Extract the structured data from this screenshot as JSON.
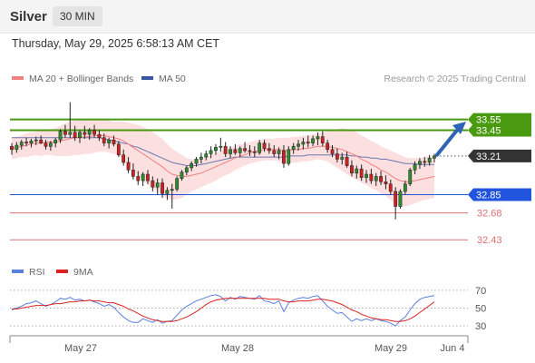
{
  "header": {
    "symbol": "Silver",
    "timeframe": "30 MIN"
  },
  "timestamp": "Thursday, May 29, 2025 6:58:13 AM CET",
  "colors": {
    "candle_up": "#2e8b2e",
    "candle_down": "#cc2222",
    "ma20": "#f08080",
    "bollinger_fill": "#fbd4d4",
    "ma50": "#3a55a0",
    "resistance": "#4a9a10",
    "support": "#2255dd",
    "support_weak": "#e07070",
    "rsi": "#5b7fdc",
    "rsi_ma": "#dd2222",
    "arrow": "#2f64b4",
    "price_tag": "#333333"
  },
  "chart_data": [
    {
      "type": "candlestick",
      "legend": [
        {
          "name": "MA 20 + Bollinger Bands",
          "color": "#f08080"
        },
        {
          "name": "MA 50",
          "color": "#3a55a0"
        }
      ],
      "credit": "Research © 2025 Trading Central",
      "x_labels": [
        "May 27",
        "May 28",
        "May 29",
        "Jun 4"
      ],
      "ylim": [
        32.28,
        33.8
      ],
      "levels": [
        {
          "label": "33.55",
          "value": 33.55,
          "kind": "resistance"
        },
        {
          "label": "33.45",
          "value": 33.45,
          "kind": "resistance"
        },
        {
          "label": "32.85",
          "value": 32.85,
          "kind": "support"
        },
        {
          "label": "32.68",
          "value": 32.68,
          "kind": "support_weak"
        },
        {
          "label": "32.43",
          "value": 32.43,
          "kind": "support_weak"
        }
      ],
      "last_price": {
        "label": "33.21",
        "value": 33.21
      },
      "target": {
        "from": 33.22,
        "to": 33.53
      },
      "candles": [
        [
          33.3,
          33.33,
          33.22,
          33.27
        ],
        [
          33.27,
          33.34,
          33.24,
          33.31
        ],
        [
          33.31,
          33.36,
          33.27,
          33.34
        ],
        [
          33.34,
          33.38,
          33.3,
          33.33
        ],
        [
          33.33,
          33.37,
          33.29,
          33.35
        ],
        [
          33.35,
          33.39,
          33.31,
          33.36
        ],
        [
          33.36,
          33.4,
          33.32,
          33.33
        ],
        [
          33.33,
          33.36,
          33.27,
          33.3
        ],
        [
          33.3,
          33.35,
          33.26,
          33.33
        ],
        [
          33.33,
          33.38,
          33.29,
          33.36
        ],
        [
          33.36,
          33.46,
          33.33,
          33.44
        ],
        [
          33.44,
          33.5,
          33.38,
          33.41
        ],
        [
          33.41,
          33.71,
          33.38,
          33.43
        ],
        [
          33.43,
          33.49,
          33.35,
          33.38
        ],
        [
          33.38,
          33.45,
          33.33,
          33.43
        ],
        [
          33.43,
          33.49,
          33.37,
          33.41
        ],
        [
          33.41,
          33.47,
          33.36,
          33.45
        ],
        [
          33.45,
          33.5,
          33.38,
          33.41
        ],
        [
          33.41,
          33.45,
          33.35,
          33.38
        ],
        [
          33.38,
          33.42,
          33.3,
          33.33
        ],
        [
          33.33,
          33.38,
          33.28,
          33.36
        ],
        [
          33.36,
          33.4,
          33.3,
          33.32
        ],
        [
          33.32,
          33.35,
          33.2,
          33.22
        ],
        [
          33.22,
          33.27,
          33.12,
          33.15
        ],
        [
          33.15,
          33.2,
          33.05,
          33.08
        ],
        [
          33.08,
          33.14,
          32.99,
          33.02
        ],
        [
          33.02,
          33.07,
          32.94,
          32.98
        ],
        [
          32.98,
          33.06,
          32.93,
          33.04
        ],
        [
          33.04,
          33.08,
          32.95,
          32.98
        ],
        [
          32.98,
          33.02,
          32.88,
          32.92
        ],
        [
          32.92,
          33.0,
          32.85,
          32.96
        ],
        [
          32.96,
          33.0,
          32.82,
          32.86
        ],
        [
          32.86,
          32.92,
          32.8,
          32.89
        ],
        [
          32.89,
          32.95,
          32.72,
          32.9
        ],
        [
          32.9,
          33.02,
          32.88,
          33.0
        ],
        [
          33.0,
          33.08,
          32.98,
          33.06
        ],
        [
          33.06,
          33.12,
          33.03,
          33.1
        ],
        [
          33.1,
          33.16,
          33.07,
          33.14
        ],
        [
          33.14,
          33.2,
          33.11,
          33.18
        ],
        [
          33.18,
          33.24,
          33.14,
          33.2
        ],
        [
          33.2,
          33.26,
          33.17,
          33.23
        ],
        [
          33.23,
          33.3,
          33.19,
          33.26
        ],
        [
          33.26,
          33.32,
          33.22,
          33.29
        ],
        [
          33.29,
          33.38,
          33.25,
          33.3
        ],
        [
          33.3,
          33.34,
          33.2,
          33.23
        ],
        [
          33.23,
          33.3,
          33.19,
          33.27
        ],
        [
          33.27,
          33.32,
          33.22,
          33.24
        ],
        [
          33.24,
          33.3,
          33.2,
          33.28
        ],
        [
          33.28,
          33.34,
          33.24,
          33.26
        ],
        [
          33.26,
          33.31,
          33.21,
          33.25
        ],
        [
          33.25,
          33.3,
          33.2,
          33.24
        ],
        [
          33.24,
          33.36,
          33.22,
          33.33
        ],
        [
          33.33,
          33.36,
          33.25,
          33.28
        ],
        [
          33.28,
          33.33,
          33.23,
          33.26
        ],
        [
          33.26,
          33.31,
          33.2,
          33.23
        ],
        [
          33.23,
          33.29,
          33.18,
          33.26
        ],
        [
          33.26,
          33.31,
          33.1,
          33.14
        ],
        [
          33.14,
          33.3,
          33.12,
          33.27
        ],
        [
          33.27,
          33.33,
          33.23,
          33.3
        ],
        [
          33.3,
          33.36,
          33.26,
          33.32
        ],
        [
          33.32,
          33.38,
          33.27,
          33.34
        ],
        [
          33.34,
          33.4,
          33.29,
          33.33
        ],
        [
          33.33,
          33.4,
          33.3,
          33.37
        ],
        [
          33.37,
          33.43,
          33.31,
          33.39
        ],
        [
          33.39,
          33.44,
          33.3,
          33.33
        ],
        [
          33.33,
          33.36,
          33.24,
          33.27
        ],
        [
          33.27,
          33.31,
          33.2,
          33.23
        ],
        [
          33.23,
          33.28,
          33.15,
          33.18
        ],
        [
          33.18,
          33.24,
          33.13,
          33.2
        ],
        [
          33.2,
          33.25,
          33.1,
          33.12
        ],
        [
          33.12,
          33.17,
          33.02,
          33.05
        ],
        [
          33.05,
          33.12,
          33.0,
          33.09
        ],
        [
          33.09,
          33.13,
          32.98,
          33.01
        ],
        [
          33.01,
          33.08,
          32.96,
          33.04
        ],
        [
          33.04,
          33.09,
          32.95,
          32.98
        ],
        [
          32.98,
          33.05,
          32.93,
          33.02
        ],
        [
          33.02,
          33.07,
          32.94,
          32.97
        ],
        [
          32.97,
          33.03,
          32.9,
          32.95
        ],
        [
          32.95,
          32.99,
          32.85,
          32.88
        ],
        [
          32.88,
          32.92,
          32.62,
          32.74
        ],
        [
          32.74,
          32.9,
          32.72,
          32.88
        ],
        [
          32.88,
          32.98,
          32.85,
          32.95
        ],
        [
          32.95,
          33.1,
          32.93,
          33.08
        ],
        [
          33.08,
          33.16,
          33.04,
          33.13
        ],
        [
          33.13,
          33.19,
          33.09,
          33.16
        ],
        [
          33.16,
          33.2,
          33.11,
          33.15
        ],
        [
          33.15,
          33.22,
          33.12,
          33.19
        ],
        [
          33.19,
          33.23,
          33.15,
          33.21
        ]
      ],
      "ma20": [
        33.28,
        33.29,
        33.3,
        33.31,
        33.32,
        33.33,
        33.33,
        33.34,
        33.34,
        33.34,
        33.35,
        33.36,
        33.37,
        33.38,
        33.38,
        33.39,
        33.39,
        33.4,
        33.4,
        33.4,
        33.39,
        33.38,
        33.37,
        33.35,
        33.32,
        33.29,
        33.26,
        33.23,
        33.2,
        33.17,
        33.14,
        33.11,
        33.07,
        33.04,
        33.03,
        33.02,
        33.02,
        33.03,
        33.04,
        33.05,
        33.07,
        33.09,
        33.11,
        33.13,
        33.15,
        33.17,
        33.19,
        33.21,
        33.22,
        33.24,
        33.25,
        33.26,
        33.27,
        33.27,
        33.27,
        33.27,
        33.26,
        33.26,
        33.27,
        33.27,
        33.28,
        33.28,
        33.29,
        33.3,
        33.3,
        33.3,
        33.29,
        33.28,
        33.27,
        33.25,
        33.23,
        33.21,
        33.18,
        33.16,
        33.13,
        33.11,
        33.08,
        33.06,
        33.03,
        33.0,
        32.98,
        32.97,
        32.97,
        32.98,
        32.99,
        33.0,
        33.01,
        33.02
      ],
      "bb_width": [
        0.1,
        0.1,
        0.1,
        0.11,
        0.11,
        0.11,
        0.12,
        0.12,
        0.12,
        0.13,
        0.14,
        0.15,
        0.16,
        0.16,
        0.16,
        0.16,
        0.16,
        0.16,
        0.15,
        0.15,
        0.15,
        0.15,
        0.16,
        0.18,
        0.2,
        0.22,
        0.24,
        0.25,
        0.26,
        0.26,
        0.26,
        0.26,
        0.25,
        0.24,
        0.22,
        0.2,
        0.17,
        0.15,
        0.14,
        0.13,
        0.13,
        0.13,
        0.13,
        0.12,
        0.12,
        0.12,
        0.11,
        0.11,
        0.1,
        0.1,
        0.1,
        0.1,
        0.1,
        0.1,
        0.1,
        0.11,
        0.12,
        0.12,
        0.12,
        0.12,
        0.12,
        0.12,
        0.12,
        0.12,
        0.13,
        0.14,
        0.16,
        0.18,
        0.2,
        0.21,
        0.22,
        0.22,
        0.22,
        0.22,
        0.22,
        0.22,
        0.22,
        0.22,
        0.23,
        0.24,
        0.24,
        0.23,
        0.22,
        0.21,
        0.2,
        0.2,
        0.2,
        0.2
      ],
      "ma50": [
        33.38,
        33.38,
        33.38,
        33.38,
        33.38,
        33.38,
        33.38,
        33.38,
        33.38,
        33.38,
        33.38,
        33.38,
        33.38,
        33.38,
        33.38,
        33.38,
        33.38,
        33.38,
        33.38,
        33.37,
        33.36,
        33.35,
        33.34,
        33.33,
        33.32,
        33.3,
        33.29,
        33.27,
        33.25,
        33.23,
        33.21,
        33.19,
        33.17,
        33.15,
        33.14,
        33.13,
        33.12,
        33.12,
        33.12,
        33.13,
        33.14,
        33.15,
        33.16,
        33.17,
        33.18,
        33.19,
        33.2,
        33.2,
        33.2,
        33.2,
        33.2,
        33.2,
        33.2,
        33.2,
        33.2,
        33.2,
        33.2,
        33.21,
        33.21,
        33.21,
        33.21,
        33.22,
        33.22,
        33.22,
        33.22,
        33.22,
        33.22,
        33.22,
        33.22,
        33.22,
        33.21,
        33.21,
        33.2,
        33.2,
        33.19,
        33.19,
        33.18,
        33.18,
        33.17,
        33.16,
        33.15,
        33.14,
        33.14,
        33.14,
        33.13,
        33.13,
        33.13,
        33.13
      ]
    },
    {
      "type": "line",
      "legend": [
        {
          "name": "RSI",
          "color": "#5b7fdc"
        },
        {
          "name": "9MA",
          "color": "#dd2222"
        }
      ],
      "ylim": [
        22,
        78
      ],
      "y_ticks": [
        70,
        50,
        30
      ],
      "series": [
        {
          "name": "RSI",
          "values": [
            48,
            50,
            52,
            55,
            56,
            58,
            55,
            52,
            54,
            57,
            61,
            60,
            62,
            59,
            60,
            58,
            59,
            57,
            55,
            52,
            54,
            51,
            45,
            40,
            36,
            34,
            34,
            38,
            36,
            34,
            37,
            33,
            35,
            36,
            42,
            48,
            52,
            55,
            58,
            60,
            62,
            64,
            65,
            63,
            58,
            62,
            60,
            63,
            62,
            61,
            60,
            64,
            58,
            57,
            55,
            58,
            46,
            56,
            59,
            61,
            62,
            61,
            63,
            64,
            58,
            52,
            48,
            44,
            45,
            40,
            35,
            38,
            36,
            38,
            36,
            38,
            36,
            35,
            33,
            30,
            36,
            40,
            48,
            55,
            60,
            62,
            63,
            64
          ]
        },
        {
          "name": "9MA",
          "values": [
            49,
            49,
            50,
            51,
            52,
            53,
            53,
            53,
            54,
            55,
            55,
            56,
            57,
            57,
            58,
            58,
            59,
            58,
            58,
            57,
            56,
            56,
            54,
            52,
            49,
            47,
            44,
            41,
            39,
            37,
            36,
            35,
            35,
            35,
            36,
            38,
            40,
            43,
            46,
            50,
            54,
            57,
            59,
            60,
            61,
            61,
            61,
            61,
            61,
            61,
            61,
            61,
            61,
            60,
            60,
            60,
            58,
            57,
            57,
            58,
            58,
            58,
            59,
            60,
            60,
            59,
            58,
            56,
            54,
            51,
            48,
            46,
            43,
            41,
            39,
            38,
            37,
            37,
            36,
            35,
            35,
            36,
            38,
            41,
            45,
            49,
            53,
            57
          ]
        }
      ]
    }
  ]
}
